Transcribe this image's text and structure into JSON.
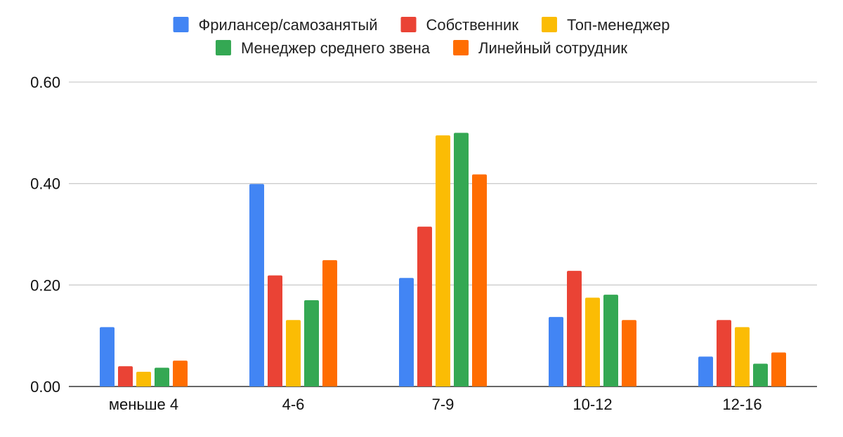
{
  "chart_data": {
    "type": "bar",
    "title": "",
    "xlabel": "",
    "ylabel": "",
    "ylim": [
      0,
      0.6
    ],
    "yticks": [
      "0.00",
      "0.20",
      "0.40",
      "0.60"
    ],
    "ytick_values": [
      0,
      0.2,
      0.4,
      0.6
    ],
    "grid": true,
    "legend_position": "top",
    "categories": [
      "меньше 4",
      "4-6",
      "7-9",
      "10-12",
      "12-16"
    ],
    "series": [
      {
        "name": "Фрилансер/самозанятый",
        "color": "#4285F4",
        "values": [
          0.117,
          0.399,
          0.214,
          0.137,
          0.059
        ]
      },
      {
        "name": "Собственник",
        "color": "#EA4335",
        "values": [
          0.04,
          0.219,
          0.315,
          0.228,
          0.131
        ]
      },
      {
        "name": "Топ-менеджер",
        "color": "#FBBC04",
        "values": [
          0.029,
          0.131,
          0.495,
          0.175,
          0.117
        ]
      },
      {
        "name": "Менеджер среднего звена",
        "color": "#34A853",
        "values": [
          0.037,
          0.17,
          0.5,
          0.181,
          0.045
        ]
      },
      {
        "name": "Линейный сотрудник",
        "color": "#FF6D01",
        "values": [
          0.051,
          0.249,
          0.418,
          0.131,
          0.067
        ]
      }
    ]
  }
}
